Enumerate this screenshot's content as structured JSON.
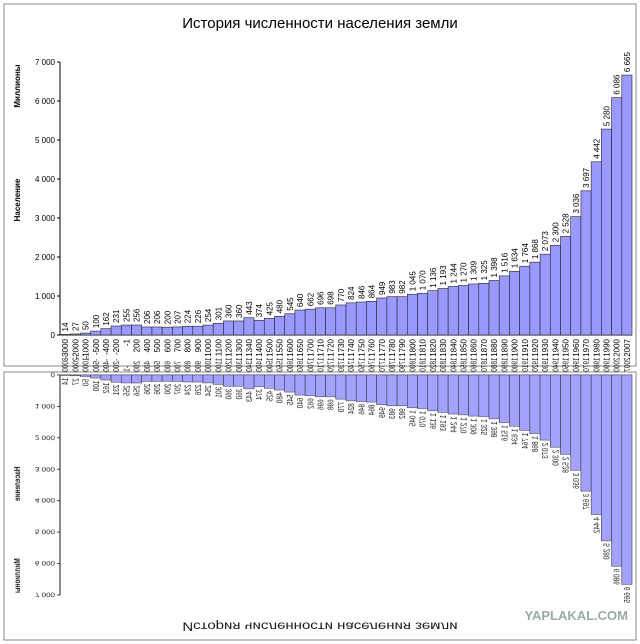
{
  "chart_data": {
    "type": "bar",
    "title": "История численности населения земли",
    "y_label": "Население",
    "y_unit": "Миллионы",
    "watermark": "YAPLAKAL.COM",
    "color": "#9999ff",
    "categories": [
      "-3000",
      "-2000",
      "-1000",
      "-500",
      "-400",
      "-200",
      "-1",
      "200",
      "400",
      "500",
      "600",
      "700",
      "800",
      "900",
      "1000",
      "1100",
      "1200",
      "1300",
      "1340",
      "1400",
      "1500",
      "1550",
      "1600",
      "1650",
      "1700",
      "1710",
      "1720",
      "1730",
      "1740",
      "1750",
      "1760",
      "1770",
      "1780",
      "1790",
      "1800",
      "1810",
      "1820",
      "1830",
      "1840",
      "1850",
      "1860",
      "1870",
      "1880",
      "1890",
      "1900",
      "1910",
      "1920",
      "1930",
      "1940",
      "1950",
      "1960",
      "1970",
      "1980",
      "1990",
      "2000",
      "2007"
    ],
    "values": [
      14,
      27,
      50,
      100,
      162,
      231,
      255,
      256,
      206,
      206,
      200,
      207,
      224,
      226,
      254,
      301,
      360,
      360,
      443,
      374,
      425,
      480,
      545,
      640,
      662,
      696,
      698,
      770,
      824,
      846,
      864,
      949,
      983,
      982,
      1045,
      1070,
      1136,
      1193,
      1244,
      1270,
      1309,
      1325,
      1398,
      1516,
      1634,
      1764,
      1868,
      2073,
      2300,
      2528,
      3036,
      3697,
      4442,
      5280,
      6086,
      6665
    ],
    "value_labels": [
      "14",
      "27",
      "50",
      "100",
      "162",
      "231",
      "255",
      "256",
      "206",
      "206",
      "200",
      "207",
      "224",
      "226",
      "254",
      "301",
      "360",
      "360",
      "443",
      "374",
      "425",
      "480",
      "545",
      "640",
      "662",
      "696",
      "698",
      "770",
      "824",
      "846",
      "864",
      "949",
      "983",
      "982",
      "1 045",
      "1 070",
      "1 136",
      "1 193",
      "1 244",
      "1 270",
      "1 309",
      "1 325",
      "1 398",
      "1 516",
      "1 634",
      "1 764",
      "1 868",
      "2 073",
      "2 300",
      "2 528",
      "3 036",
      "3 697",
      "4 442",
      "5 280",
      "6 086",
      "6 665"
    ],
    "ylim": [
      0,
      7000
    ],
    "yticks": [
      0,
      {
        "value": 1000,
        "label": "1 000"
      },
      {
        "value": 2000,
        "label": "2 000"
      },
      {
        "value": 3000,
        "label": "3 000"
      },
      {
        "value": 4000,
        "label": "4 000"
      },
      {
        "value": 5000,
        "label": "5 000"
      },
      {
        "value": 6000,
        "label": "6 000"
      },
      {
        "value": 7000,
        "label": "7 000"
      }
    ],
    "grid": false
  }
}
